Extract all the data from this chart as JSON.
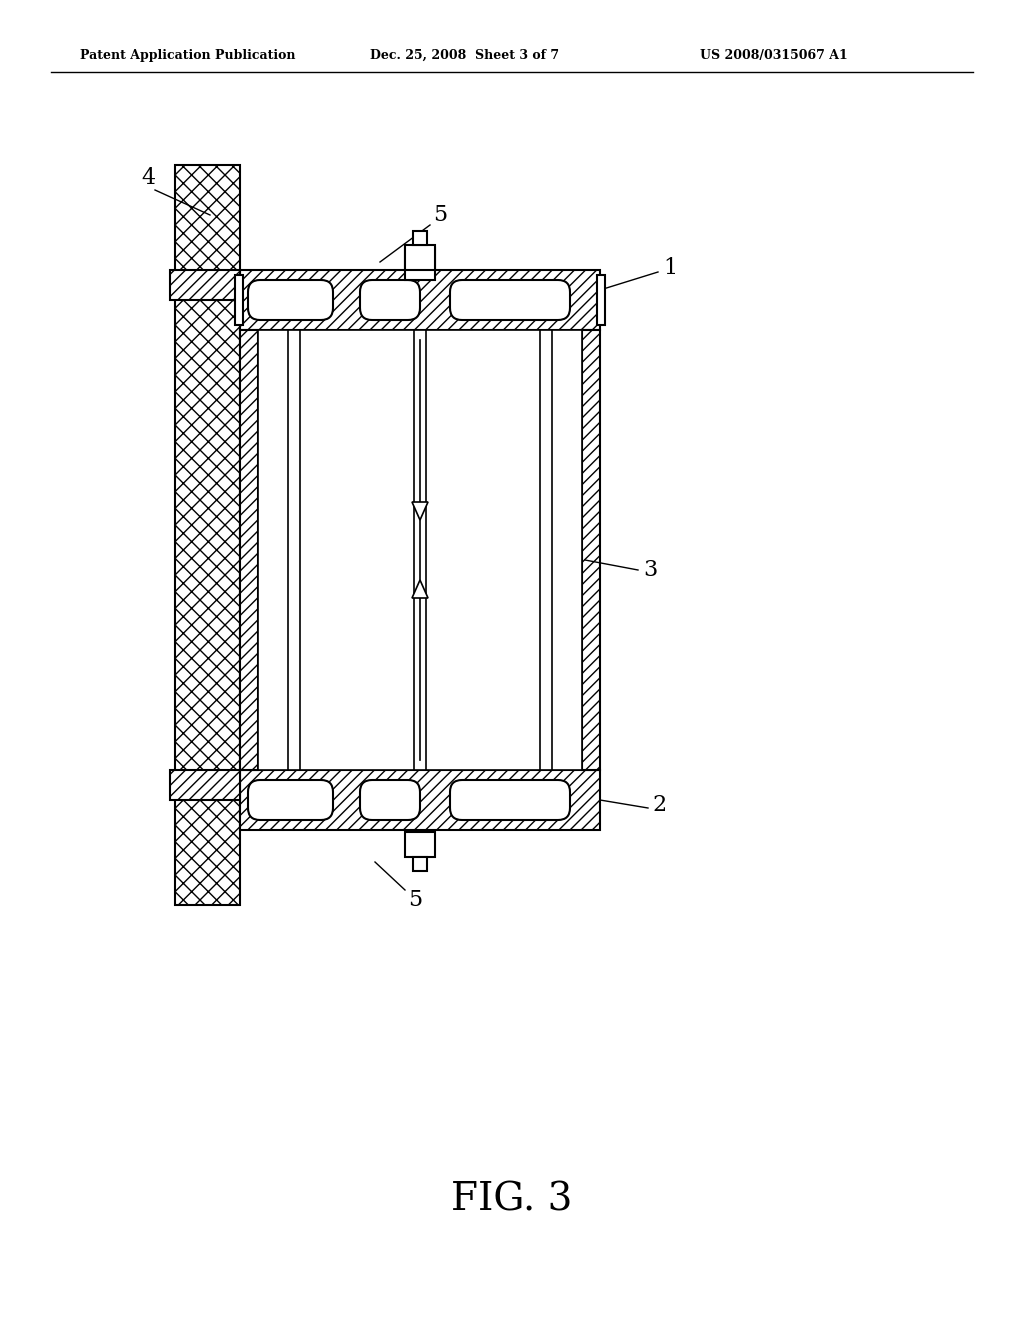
{
  "title": "FIG. 3",
  "header_left": "Patent Application Publication",
  "header_center": "Dec. 25, 2008  Sheet 3 of 7",
  "header_right": "US 2008/0315067 A1",
  "background": "#ffffff",
  "line_color": "#000000",
  "hatch_color": "#000000",
  "label_1": "1",
  "label_2": "2",
  "label_3": "3",
  "label_4": "4",
  "label_5": "5"
}
